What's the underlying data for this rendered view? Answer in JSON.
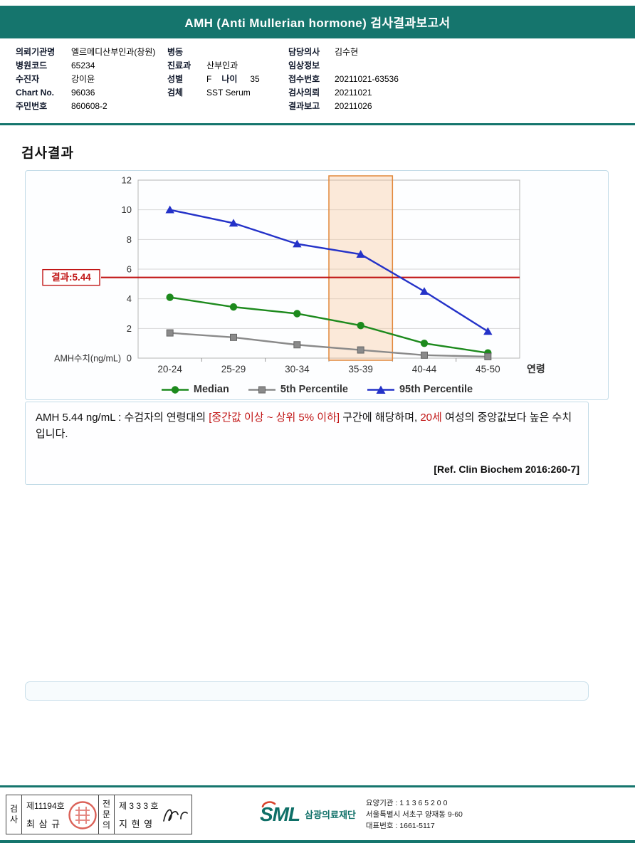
{
  "colors": {
    "accent": "#15756d",
    "result-red": "#c11616",
    "box-border": "#c2dbe7"
  },
  "header": {
    "title": "AMH (Anti Mullerian hormone) 검사결과보고서"
  },
  "patient": {
    "col1": [
      {
        "label": "의뢰기관명",
        "value": "엘르메디산부인과(창원)"
      },
      {
        "label": "병원코드",
        "value": "65234"
      },
      {
        "label": "수진자",
        "value": "강이윤"
      },
      {
        "label": "Chart No.",
        "value": "96036"
      },
      {
        "label": "주민번호",
        "value": "860608-2"
      }
    ],
    "col2": {
      "ward_label": "병동",
      "ward_value": "",
      "dept_label": "진료과",
      "dept_value": "산부인과",
      "sex_label": "성별",
      "sex_value": "F",
      "age_label": "나이",
      "age_value": "35",
      "specimen_label": "검체",
      "specimen_value": "SST Serum"
    },
    "col3": [
      {
        "label": "담당의사",
        "value": "김수현"
      },
      {
        "label": "임상정보",
        "value": ""
      },
      {
        "label": "접수번호",
        "value": "20211021-63536"
      },
      {
        "label": "검사의뢰",
        "value": "20211021"
      },
      {
        "label": "결과보고",
        "value": "20211026"
      }
    ]
  },
  "results_section": {
    "title": "검사결과"
  },
  "chart_data": {
    "type": "line",
    "categories": [
      "20-24",
      "25-29",
      "30-34",
      "35-39",
      "40-44",
      "45-50"
    ],
    "series": [
      {
        "name": "Median",
        "marker": "circle",
        "color": "#1d8a1d",
        "values": [
          4.1,
          3.45,
          3.0,
          2.2,
          1.0,
          0.35
        ]
      },
      {
        "name": "5th Percentile",
        "marker": "square",
        "color": "#8a8a8a",
        "values": [
          1.7,
          1.4,
          0.9,
          0.55,
          0.2,
          0.1
        ]
      },
      {
        "name": "95th Percentile",
        "marker": "triangle",
        "color": "#2432c8",
        "values": [
          10.0,
          9.1,
          7.7,
          7.0,
          4.5,
          1.8
        ]
      }
    ],
    "ylabel": "AMH수치(ng/mL)",
    "xlabel": "연령",
    "ylim": [
      0,
      12
    ],
    "yticks": [
      0,
      2,
      4,
      6,
      8,
      10,
      12
    ],
    "grid": true,
    "legend_position": "bottom",
    "result_value": 5.44,
    "result_label": "결과:5.44",
    "result_color": "#c11616",
    "highlight_category": "35-39",
    "highlight_fill": "#f8c89a",
    "highlight_stroke": "#e2883c"
  },
  "interpretation": {
    "seg1": "AMH 5.44 ng/mL : 수검자의 연령대의 ",
    "red1": "[중간값 이상 ~ 상위 5% 이하]",
    "seg2": " 구간에 해당하며, ",
    "red2": "20세",
    "seg3": " 여성의 중앙값보다 높은 수치입니다.",
    "reference": "[Ref. Clin Biochem 2016:260-7]"
  },
  "footer": {
    "examiner": {
      "role": "검사",
      "cert": "제11194호",
      "name": "최 삼 규"
    },
    "specialist": {
      "role": "전문의",
      "cert": "제 3 3 3 호",
      "name": "지 현 영"
    },
    "logo": {
      "mark": "SML",
      "name": "삼광의료재단"
    },
    "org_lines": [
      "요양기관 : 1 1 3 6 5 2 0 0",
      "서울특별시 서초구 양재동 9-60",
      "대표번호 : 1661-5117"
    ]
  }
}
